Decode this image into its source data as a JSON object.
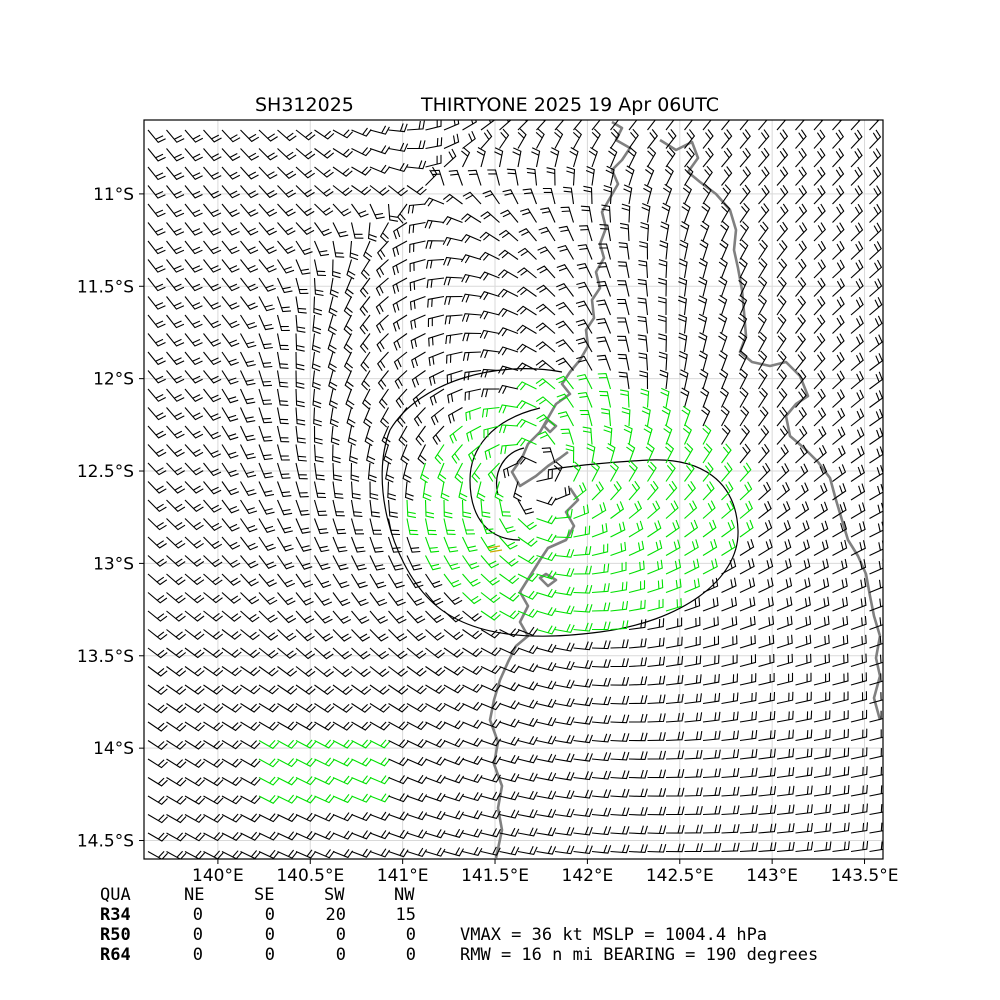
{
  "title": {
    "storm_id": "SH312025",
    "storm_name_time": "THIRTYONE 2025 19 Apr 06UTC"
  },
  "map": {
    "lon_range": [
      139.6,
      143.6
    ],
    "lat_range": [
      -14.6,
      -10.6
    ],
    "x_ticks": [
      {
        "value": 140.0,
        "label": "140°E"
      },
      {
        "value": 140.5,
        "label": "140.5°E"
      },
      {
        "value": 141.0,
        "label": "141°E"
      },
      {
        "value": 141.5,
        "label": "141.5°E"
      },
      {
        "value": 142.0,
        "label": "142°E"
      },
      {
        "value": 142.5,
        "label": "142.5°E"
      },
      {
        "value": 143.0,
        "label": "143°E"
      },
      {
        "value": 143.5,
        "label": "143.5°E"
      }
    ],
    "y_ticks": [
      {
        "value": -11.0,
        "label": "11°S"
      },
      {
        "value": -11.5,
        "label": "11.5°S"
      },
      {
        "value": -12.0,
        "label": "12°S"
      },
      {
        "value": -12.5,
        "label": "12.5°S"
      },
      {
        "value": -13.0,
        "label": "13°S"
      },
      {
        "value": -13.5,
        "label": "13.5°S"
      },
      {
        "value": -14.0,
        "label": "14°S"
      },
      {
        "value": -14.5,
        "label": "14.5°S"
      }
    ],
    "grid": true,
    "storm_center": {
      "lon": 141.72,
      "lat": -12.55
    },
    "colors": {
      "barb_normal": "#000000",
      "barb_34kt": "#00e000",
      "barb_50kt": "#ccaa00",
      "coastline": "#808080",
      "grid": "#d9d9d9"
    }
  },
  "radii_table": {
    "headers": [
      "QUA",
      "NE",
      "SE",
      "SW",
      "NW"
    ],
    "rows": [
      {
        "label": "R34",
        "values": [
          "0",
          "0",
          "20",
          "15"
        ]
      },
      {
        "label": "R50",
        "values": [
          "0",
          "0",
          "0",
          "0"
        ]
      },
      {
        "label": "R64",
        "values": [
          "0",
          "0",
          "0",
          "0"
        ]
      }
    ]
  },
  "stats": {
    "line1": "VMAX =  36 kt MSLP = 1004.4 hPa",
    "line2": "RMW =  16 n mi BEARING = 190 degrees"
  }
}
